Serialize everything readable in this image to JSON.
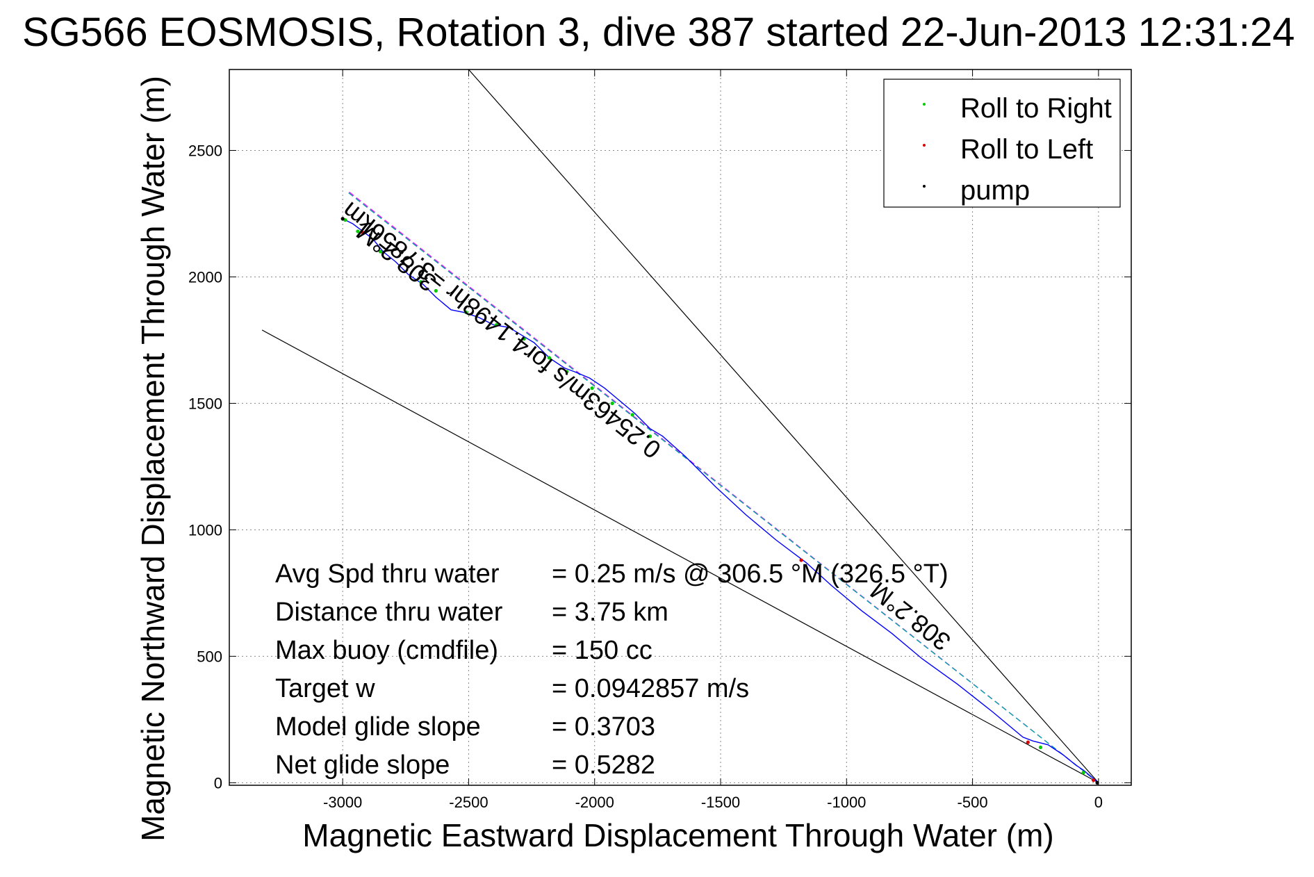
{
  "chart_data": {
    "type": "line",
    "title": "SG566 EOSMOSIS, Rotation 3, dive 387 started 22-Jun-2013 12:31:24",
    "xlabel": "Magnetic Eastward Displacement Through Water (m)",
    "ylabel": "Magnetic Northward Displacement Through Water (m)",
    "xlim": [
      -3450,
      130
    ],
    "ylim": [
      -10,
      2820
    ],
    "xticks": [
      -3000,
      -2500,
      -2000,
      -1500,
      -1000,
      -500,
      0
    ],
    "xtick_labels": [
      "-3000",
      "-2500",
      "-2000",
      "-1500",
      "-1000",
      "-500",
      "0"
    ],
    "yticks": [
      0,
      500,
      1000,
      1500,
      2000,
      2500
    ],
    "ytick_labels": [
      "0",
      "500",
      "1000",
      "1500",
      "2000",
      "2500"
    ],
    "grid": true,
    "legend": {
      "placement": "top-right",
      "entries": [
        {
          "name": "Roll to Right",
          "color": "#00cc00"
        },
        {
          "name": "Roll to Left",
          "color": "#dd0000"
        },
        {
          "name": "pump",
          "color": "#000000"
        }
      ]
    },
    "track": {
      "color": "#0000ff",
      "x": [
        0,
        -60,
        -90,
        -140,
        -200,
        -260,
        -300,
        -420,
        -560,
        -700,
        -820,
        -940,
        -1060,
        -1160,
        -1280,
        -1400,
        -1520,
        -1640,
        -1730,
        -1780,
        -1840,
        -1900,
        -1960,
        -2020,
        -2080,
        -2120,
        -2180,
        -2240,
        -2290,
        -2340,
        -2400,
        -2460,
        -2520,
        -2570,
        -2630,
        -2680,
        -2740,
        -2790,
        -2840,
        -2880,
        -2920,
        -2960,
        -3000
      ],
      "y": [
        0,
        50,
        70,
        110,
        150,
        165,
        180,
        280,
        390,
        490,
        590,
        680,
        780,
        870,
        960,
        1060,
        1170,
        1290,
        1370,
        1400,
        1460,
        1510,
        1560,
        1600,
        1625,
        1640,
        1680,
        1740,
        1770,
        1800,
        1810,
        1840,
        1860,
        1870,
        1920,
        1970,
        2010,
        2060,
        2100,
        2150,
        2180,
        2210,
        2230
      ]
    },
    "roll_right_points": {
      "x": [
        -2990,
        -2940,
        -2850,
        -2690,
        -2630,
        -2510,
        -2390,
        -2280,
        -2180,
        -2110,
        -2010,
        -1930,
        -1850,
        -1780,
        -230,
        -60
      ],
      "y": [
        2225,
        2180,
        2100,
        1980,
        1945,
        1860,
        1810,
        1755,
        1680,
        1625,
        1560,
        1500,
        1455,
        1370,
        140,
        40
      ]
    },
    "roll_left_points": {
      "x": [
        -2920,
        -1180,
        -280,
        -20
      ],
      "y": [
        2175,
        880,
        160,
        10
      ]
    },
    "pump_points": {
      "x": [
        -3000,
        -5
      ],
      "y": [
        2230,
        0
      ]
    },
    "dashed_lines": [
      {
        "color": "#ff00ff",
        "x": [
          0,
          -2980
        ],
        "y": [
          0,
          2340
        ]
      },
      {
        "color": "#00aaaa",
        "x": [
          0,
          -2980
        ],
        "y": [
          0,
          2335
        ]
      }
    ],
    "reference_lines": [
      {
        "color": "#000000",
        "x": [
          0,
          -2500
        ],
        "y": [
          0,
          2820
        ]
      },
      {
        "color": "#000000",
        "x": [
          0,
          -3320
        ],
        "y": [
          0,
          1790
        ]
      }
    ],
    "annotations": [
      {
        "text": "308.2°M",
        "x": -2620,
        "y": 1990,
        "angle": 38.2
      },
      {
        "text": "0.25463m/s for4.1498hr =3.7856km",
        "x": -1730,
        "y": 1330,
        "angle": 38.2
      },
      {
        "text": "308.2°M",
        "x": -580,
        "y": 570,
        "angle": 38.2
      }
    ],
    "stats": [
      {
        "label": "Avg Spd thru water",
        "value": "=  0.25 m/s @  306.5 °M (326.5 °T)"
      },
      {
        "label": "Distance thru water",
        "value": "=  3.75 km"
      },
      {
        "label": "Max buoy (cmdfile)",
        "value": "= 150 cc"
      },
      {
        "label": "Target w",
        "value": "= 0.0942857 m/s"
      },
      {
        "label": "Model glide slope",
        "value": "= 0.3703"
      },
      {
        "label": "Net glide slope",
        "value": "= 0.5282"
      }
    ]
  }
}
